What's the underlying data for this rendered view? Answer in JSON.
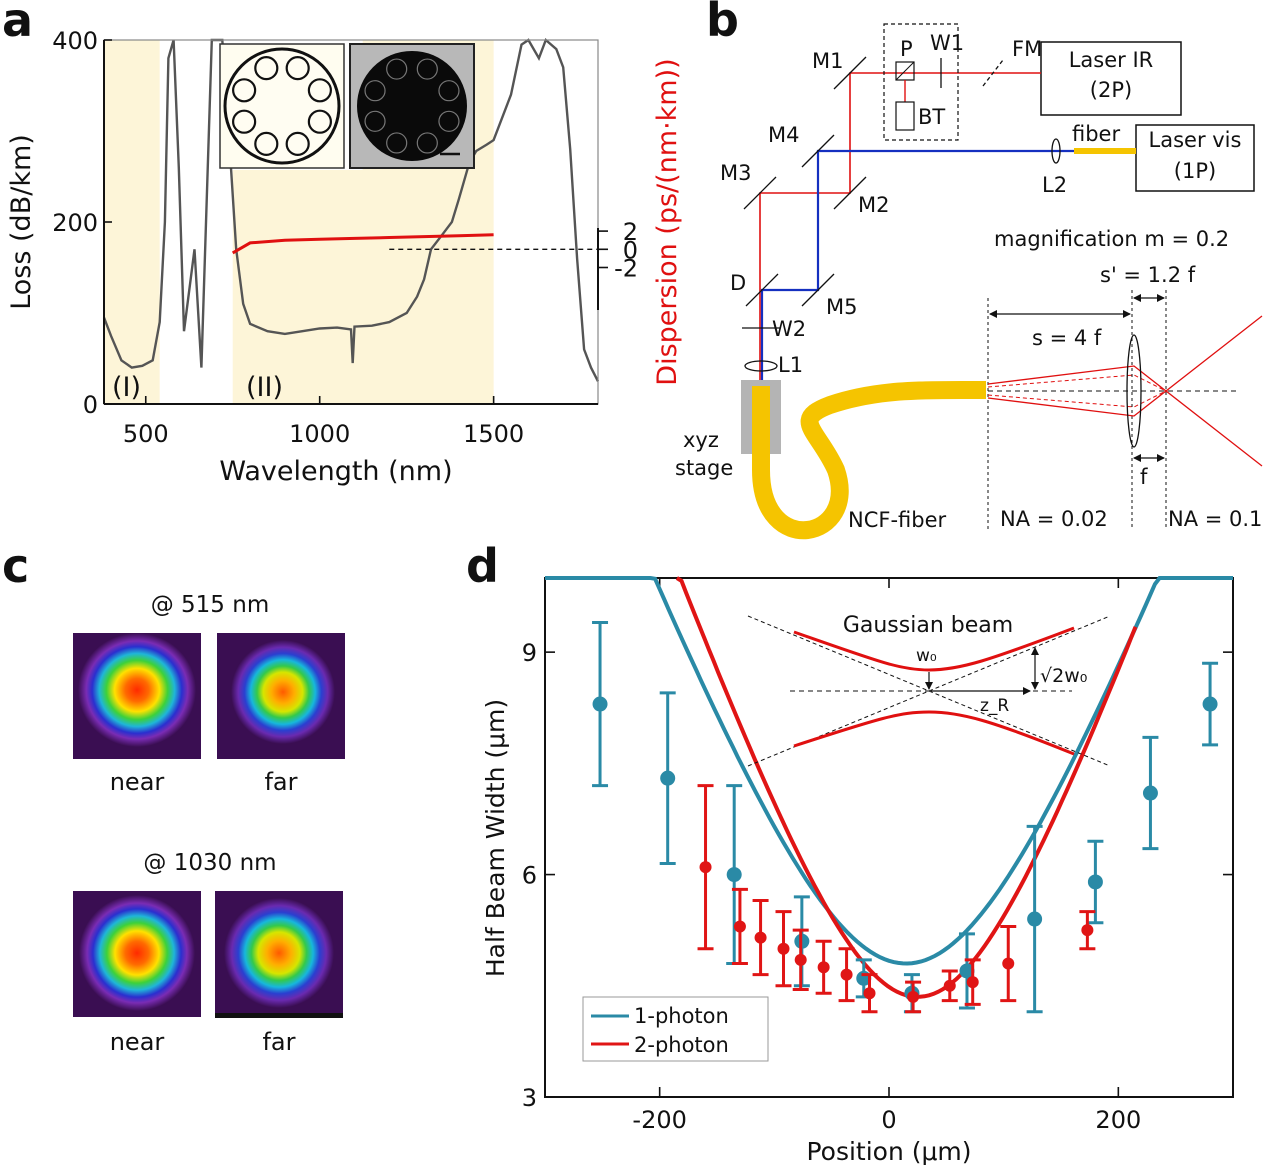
{
  "panels": {
    "a": {
      "label": "a",
      "ylabel": "Loss (dB/km)",
      "xlabel": "Wavelength (nm)",
      "y2label": "Dispersion (ps/(nm·km))",
      "region_labels": [
        "(I)",
        "(II)"
      ]
    },
    "b": {
      "label": "b",
      "components": {
        "M1": "M1",
        "M2": "M2",
        "M3": "M3",
        "M4": "M4",
        "M5": "M5",
        "P": "P",
        "W1": "W1",
        "W2": "W2",
        "FM": "FM",
        "BT": "BT",
        "L1": "L1",
        "L2": "L2",
        "D": "D",
        "fiber": "fiber"
      },
      "laser_ir": [
        "Laser IR",
        "(2P)"
      ],
      "laser_vis": [
        "Laser vis",
        "(1P)"
      ],
      "stage": [
        "xyz",
        "stage"
      ],
      "ncf_fiber": "NCF-fiber",
      "magnification": "magnification m = 0.2",
      "s_prime": "s' = 1.2 f",
      "s": "s = 4 f",
      "f": "f",
      "na_in": "NA = 0.02",
      "na_out": "NA = 0.1"
    },
    "c": {
      "label": "c",
      "rows": [
        {
          "wavelength": "@ 515 nm",
          "images": [
            "near",
            "far"
          ]
        },
        {
          "wavelength": "@ 1030 nm",
          "images": [
            "near",
            "far"
          ]
        }
      ]
    },
    "d": {
      "label": "d",
      "ylabel": "Half Beam Width (μm)",
      "xlabel": "Position (μm)",
      "inset_title": "Gaussian beam",
      "inset_w0": "w₀",
      "inset_zr": "z_R",
      "inset_sqrt": "√2w₀"
    }
  },
  "colors": {
    "loss_curve": "#555555",
    "region_fill": "#fdf5d8",
    "dispersion": "#e01010",
    "one_photon": "#2a8aa6",
    "two_photon": "#e01515",
    "ir_beam": "#e01010",
    "vis_beam": "#1530c0",
    "fiber": "#f5c400"
  },
  "chart_data": [
    {
      "panel": "a",
      "type": "line",
      "xlabel": "Wavelength (nm)",
      "ylabel": "Loss (dB/km)",
      "y2label": "Dispersion (ps/(nm·km))",
      "xlim": [
        380,
        1800
      ],
      "ylim": [
        0,
        400
      ],
      "y2lim": [
        -17,
        23
      ],
      "xticks": [
        500,
        1000,
        1500
      ],
      "yticks": [
        0,
        200,
        400
      ],
      "y2ticks": [
        -2,
        0,
        2
      ],
      "shaded_regions": [
        [
          380,
          540
        ],
        [
          750,
          1500
        ]
      ],
      "series": [
        {
          "name": "",
          "axis": "left",
          "x": [
            380,
            400,
            430,
            460,
            490,
            520,
            540,
            555,
            565,
            580,
            595,
            610,
            640,
            660,
            690,
            700,
            720,
            740,
            760,
            780,
            800,
            850,
            900,
            950,
            1000,
            1050,
            1090,
            1095,
            1100,
            1150,
            1200,
            1250,
            1280,
            1300,
            1320,
            1350,
            1380,
            1400,
            1430,
            1450,
            1480,
            1500,
            1550,
            1580,
            1600,
            1630,
            1650,
            1680,
            1700,
            1720,
            1740,
            1760,
            1780,
            1800
          ],
          "y": [
            95,
            75,
            48,
            40,
            42,
            48,
            90,
            200,
            380,
            400,
            260,
            80,
            170,
            40,
            400,
            400,
            400,
            290,
            170,
            110,
            88,
            80,
            77,
            80,
            83,
            84,
            82,
            45,
            85,
            86,
            90,
            100,
            118,
            137,
            170,
            185,
            200,
            225,
            265,
            278,
            285,
            290,
            340,
            395,
            400,
            380,
            400,
            390,
            370,
            280,
            160,
            60,
            40,
            25
          ]
        },
        {
          "name": "",
          "axis": "right",
          "x": [
            750,
            800,
            900,
            1000,
            1100,
            1200,
            1300,
            1400,
            1500
          ],
          "y": [
            -0.4,
            0.7,
            1.0,
            1.1,
            1.2,
            1.3,
            1.4,
            1.5,
            1.6
          ]
        }
      ]
    },
    {
      "panel": "d",
      "type": "scatter",
      "xlabel": "Position (μm)",
      "ylabel": "Half Beam Width (μm)",
      "xlim": [
        -300,
        300
      ],
      "ylim": [
        3,
        10
      ],
      "xticks": [
        -200,
        0,
        200
      ],
      "yticks": [
        3,
        6,
        9
      ],
      "legend": "bottom-left",
      "series": [
        {
          "name": "1-photon",
          "points": [
            [
              -252,
              8.3,
              1.1
            ],
            [
              -193,
              7.3,
              1.15
            ],
            [
              -135,
              6.0,
              1.2
            ],
            [
              -76,
              5.1,
              0.6
            ],
            [
              -22,
              4.6,
              0.25
            ],
            [
              20,
              4.4,
              0.25
            ],
            [
              68,
              4.7,
              0.5
            ],
            [
              127,
              5.4,
              1.25
            ],
            [
              180,
              5.9,
              0.55
            ],
            [
              228,
              7.1,
              0.75
            ],
            [
              280,
              8.3,
              0.55
            ]
          ],
          "fit": {
            "x0": 15,
            "w0": 4.8,
            "zr": 120,
            "xrange": [
              -300,
              300
            ]
          }
        },
        {
          "name": "2-photon",
          "points": [
            [
              -160,
              6.1,
              1.1
            ],
            [
              -130,
              5.3,
              0.5
            ],
            [
              -112,
              5.15,
              0.5
            ],
            [
              -92,
              5.0,
              0.5
            ],
            [
              -77,
              4.85,
              0.4
            ],
            [
              -57,
              4.75,
              0.35
            ],
            [
              -37,
              4.65,
              0.35
            ],
            [
              -17,
              4.4,
              0.25
            ],
            [
              21,
              4.35,
              0.2
            ],
            [
              53,
              4.5,
              0.2
            ],
            [
              73,
              4.55,
              0.3
            ],
            [
              104,
              4.8,
              0.5
            ],
            [
              173,
              5.25,
              0.25
            ]
          ],
          "fit": {
            "x0": 25,
            "w0": 4.35,
            "zr": 100,
            "xrange": [
              -185,
              215
            ]
          }
        }
      ]
    }
  ]
}
